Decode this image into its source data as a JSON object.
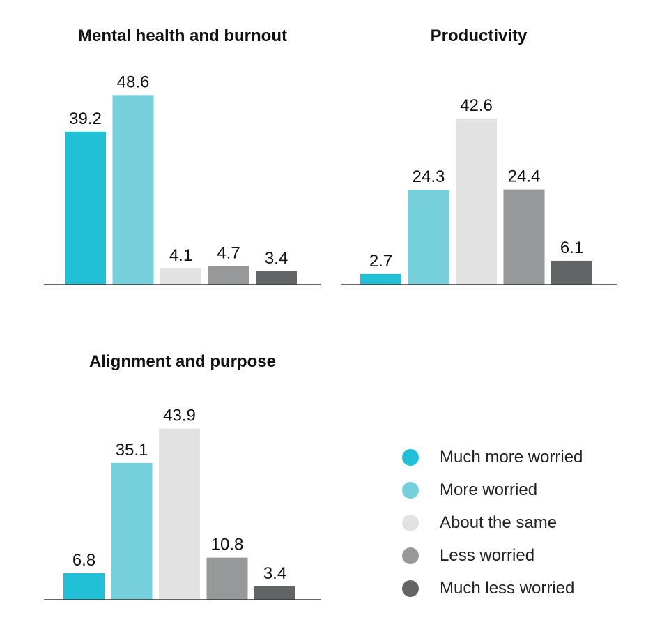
{
  "chart_data": [
    {
      "type": "bar",
      "title": "Mental health and burnout",
      "categories": [
        "Much more worried",
        "More worried",
        "About the same",
        "Less worried",
        "Much less worried"
      ],
      "values": [
        39.2,
        48.6,
        4.1,
        4.7,
        3.4
      ],
      "xlabel": "",
      "ylabel": "",
      "ylim": [
        0,
        50
      ]
    },
    {
      "type": "bar",
      "title": "Productivity",
      "categories": [
        "Much more worried",
        "More worried",
        "About the same",
        "Less worried",
        "Much less worried"
      ],
      "values": [
        2.7,
        24.3,
        42.6,
        24.4,
        6.1
      ],
      "xlabel": "",
      "ylabel": "",
      "ylim": [
        0,
        50
      ]
    },
    {
      "type": "bar",
      "title": "Alignment and purpose",
      "categories": [
        "Much more worried",
        "More worried",
        "About the same",
        "Less worried",
        "Much less worried"
      ],
      "values": [
        6.8,
        35.1,
        43.9,
        10.8,
        3.4
      ],
      "xlabel": "",
      "ylabel": "",
      "ylim": [
        0,
        50
      ]
    }
  ],
  "legend": {
    "position": "bottom-right",
    "items": [
      {
        "label": "Much more worried",
        "color": "#22c0d6"
      },
      {
        "label": "More worried",
        "color": "#75d0dc"
      },
      {
        "label": "About the same",
        "color": "#e2e2e2"
      },
      {
        "label": "Less worried",
        "color": "#97989a"
      },
      {
        "label": "Much less worried",
        "color": "#636466"
      }
    ]
  }
}
